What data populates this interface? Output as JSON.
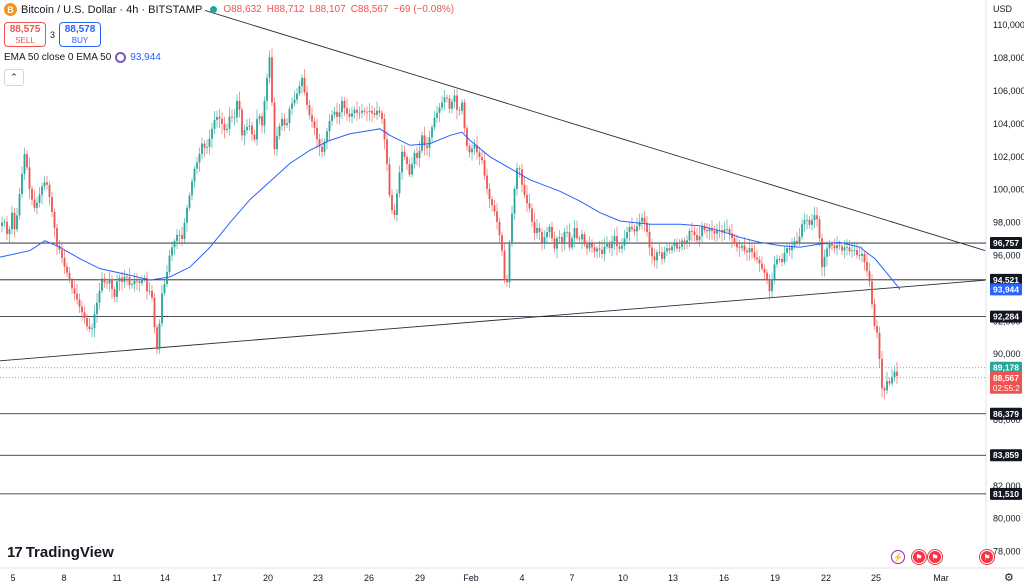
{
  "header": {
    "symbol_icon": "B",
    "title": "Bitcoin / U.S. Dollar · 4h · BITSTAMP",
    "open": "O88,632",
    "high": "H88,712",
    "low": "L88,107",
    "close": "C88,567",
    "change": "−69 (−0.08%)"
  },
  "trade": {
    "sell_price": "88,575",
    "sell_label": "SELL",
    "spread": "3",
    "buy_price": "88,578",
    "buy_label": "BUY"
  },
  "indicator": {
    "label": "EMA 50 close 0 EMA 50",
    "value": "93,944"
  },
  "axis": {
    "currency": "USD"
  },
  "brand": {
    "name": "TradingView",
    "mark": "17"
  },
  "colors": {
    "up": "#26a69a",
    "down": "#ef5350",
    "ema": "#2962ff",
    "flash": "#9c27b0",
    "flag": "#f23645"
  },
  "chart_data": {
    "type": "candlestick",
    "symbol": "Bitcoin / U.S. Dollar",
    "interval": "4h",
    "exchange": "BITSTAMP",
    "ylim": [
      76800,
      111000
    ],
    "y_ticks": [
      "78,000",
      "80,000",
      "82,000",
      "84,000",
      "86,000",
      "88,000",
      "90,000",
      "92,000",
      "94,000",
      "96,000",
      "98,000",
      "100,000",
      "102,000",
      "104,000",
      "106,000",
      "108,000",
      "110,000"
    ],
    "x_ticks": [
      "5",
      "8",
      "11",
      "14",
      "17",
      "20",
      "23",
      "26",
      "29",
      "Feb",
      "4",
      "7",
      "10",
      "13",
      "16",
      "19",
      "22",
      "25",
      "Mar"
    ],
    "close_path": [
      {
        "t": 0,
        "p": 97800
      },
      {
        "t": 4,
        "p": 98200
      },
      {
        "t": 8,
        "p": 97000
      },
      {
        "t": 12,
        "p": 98600
      },
      {
        "t": 15,
        "p": 97400
      },
      {
        "t": 20,
        "p": 100000
      },
      {
        "t": 25,
        "p": 102400
      },
      {
        "t": 30,
        "p": 99800
      },
      {
        "t": 35,
        "p": 98800
      },
      {
        "t": 42,
        "p": 100200
      },
      {
        "t": 46,
        "p": 100600
      },
      {
        "t": 50,
        "p": 99400
      },
      {
        "t": 54,
        "p": 97900
      },
      {
        "t": 57,
        "p": 96600
      },
      {
        "t": 60,
        "p": 96300
      },
      {
        "t": 64,
        "p": 95400
      },
      {
        "t": 68,
        "p": 94800
      },
      {
        "t": 72,
        "p": 94000
      },
      {
        "t": 76,
        "p": 93500
      },
      {
        "t": 80,
        "p": 92800
      },
      {
        "t": 84,
        "p": 92300
      },
      {
        "t": 88,
        "p": 91500
      },
      {
        "t": 92,
        "p": 91600
      },
      {
        "t": 95,
        "p": 92600
      },
      {
        "t": 98,
        "p": 93400
      },
      {
        "t": 102,
        "p": 94600
      },
      {
        "t": 106,
        "p": 94200
      },
      {
        "t": 110,
        "p": 94600
      },
      {
        "t": 114,
        "p": 93300
      },
      {
        "t": 118,
        "p": 94800
      },
      {
        "t": 122,
        "p": 94400
      },
      {
        "t": 126,
        "p": 94900
      },
      {
        "t": 130,
        "p": 94100
      },
      {
        "t": 135,
        "p": 94500
      },
      {
        "t": 140,
        "p": 94300
      },
      {
        "t": 144,
        "p": 94800
      },
      {
        "t": 148,
        "p": 93500
      },
      {
        "t": 151,
        "p": 94200
      },
      {
        "t": 154,
        "p": 91900
      },
      {
        "t": 157,
        "p": 90300
      },
      {
        "t": 159,
        "p": 91500
      },
      {
        "t": 162,
        "p": 93700
      },
      {
        "t": 166,
        "p": 94600
      },
      {
        "t": 170,
        "p": 96200
      },
      {
        "t": 174,
        "p": 96800
      },
      {
        "t": 178,
        "p": 97400
      },
      {
        "t": 182,
        "p": 97000
      },
      {
        "t": 186,
        "p": 98600
      },
      {
        "t": 190,
        "p": 99800
      },
      {
        "t": 194,
        "p": 101200
      },
      {
        "t": 198,
        "p": 101800
      },
      {
        "t": 202,
        "p": 102800
      },
      {
        "t": 206,
        "p": 102400
      },
      {
        "t": 210,
        "p": 103200
      },
      {
        "t": 214,
        "p": 104200
      },
      {
        "t": 218,
        "p": 104500
      },
      {
        "t": 222,
        "p": 104000
      },
      {
        "t": 226,
        "p": 103400
      },
      {
        "t": 230,
        "p": 104600
      },
      {
        "t": 234,
        "p": 104200
      },
      {
        "t": 238,
        "p": 105800
      },
      {
        "t": 242,
        "p": 103300
      },
      {
        "t": 246,
        "p": 103800
      },
      {
        "t": 250,
        "p": 103900
      },
      {
        "t": 254,
        "p": 102800
      },
      {
        "t": 258,
        "p": 104800
      },
      {
        "t": 262,
        "p": 103900
      },
      {
        "t": 266,
        "p": 106300
      },
      {
        "t": 270,
        "p": 108300
      },
      {
        "t": 274,
        "p": 102300
      },
      {
        "t": 278,
        "p": 103600
      },
      {
        "t": 282,
        "p": 104300
      },
      {
        "t": 286,
        "p": 103700
      },
      {
        "t": 290,
        "p": 105100
      },
      {
        "t": 294,
        "p": 105400
      },
      {
        "t": 298,
        "p": 106000
      },
      {
        "t": 302,
        "p": 106800
      },
      {
        "t": 306,
        "p": 105400
      },
      {
        "t": 310,
        "p": 104400
      },
      {
        "t": 314,
        "p": 103900
      },
      {
        "t": 318,
        "p": 102800
      },
      {
        "t": 322,
        "p": 102300
      },
      {
        "t": 326,
        "p": 103300
      },
      {
        "t": 330,
        "p": 104300
      },
      {
        "t": 334,
        "p": 104800
      },
      {
        "t": 338,
        "p": 104300
      },
      {
        "t": 342,
        "p": 105400
      },
      {
        "t": 346,
        "p": 104700
      },
      {
        "t": 350,
        "p": 104400
      },
      {
        "t": 354,
        "p": 104900
      },
      {
        "t": 358,
        "p": 104600
      },
      {
        "t": 362,
        "p": 104800
      },
      {
        "t": 366,
        "p": 104700
      },
      {
        "t": 370,
        "p": 104800
      },
      {
        "t": 374,
        "p": 104500
      },
      {
        "t": 378,
        "p": 104900
      },
      {
        "t": 382,
        "p": 104300
      },
      {
        "t": 386,
        "p": 102300
      },
      {
        "t": 390,
        "p": 99300
      },
      {
        "t": 394,
        "p": 98200
      },
      {
        "t": 398,
        "p": 100300
      },
      {
        "t": 402,
        "p": 102300
      },
      {
        "t": 406,
        "p": 101800
      },
      {
        "t": 410,
        "p": 100800
      },
      {
        "t": 414,
        "p": 102300
      },
      {
        "t": 418,
        "p": 101800
      },
      {
        "t": 422,
        "p": 103300
      },
      {
        "t": 426,
        "p": 102300
      },
      {
        "t": 430,
        "p": 103300
      },
      {
        "t": 434,
        "p": 104300
      },
      {
        "t": 438,
        "p": 104800
      },
      {
        "t": 442,
        "p": 105300
      },
      {
        "t": 446,
        "p": 105800
      },
      {
        "t": 450,
        "p": 104800
      },
      {
        "t": 454,
        "p": 105900
      },
      {
        "t": 458,
        "p": 104500
      },
      {
        "t": 462,
        "p": 105300
      },
      {
        "t": 466,
        "p": 102800
      },
      {
        "t": 470,
        "p": 102200
      },
      {
        "t": 474,
        "p": 102800
      },
      {
        "t": 478,
        "p": 102100
      },
      {
        "t": 482,
        "p": 101800
      },
      {
        "t": 486,
        "p": 100300
      },
      {
        "t": 490,
        "p": 99300
      },
      {
        "t": 494,
        "p": 98800
      },
      {
        "t": 498,
        "p": 97800
      },
      {
        "t": 502,
        "p": 96300
      },
      {
        "t": 506,
        "p": 93400
      },
      {
        "t": 510,
        "p": 97300
      },
      {
        "t": 514,
        "p": 99800
      },
      {
        "t": 518,
        "p": 101800
      },
      {
        "t": 522,
        "p": 100300
      },
      {
        "t": 526,
        "p": 99300
      },
      {
        "t": 530,
        "p": 98800
      },
      {
        "t": 534,
        "p": 97300
      },
      {
        "t": 538,
        "p": 97800
      },
      {
        "t": 542,
        "p": 96800
      },
      {
        "t": 546,
        "p": 97300
      },
      {
        "t": 550,
        "p": 97800
      },
      {
        "t": 554,
        "p": 96300
      },
      {
        "t": 558,
        "p": 97300
      },
      {
        "t": 562,
        "p": 96800
      },
      {
        "t": 566,
        "p": 97800
      },
      {
        "t": 570,
        "p": 96300
      },
      {
        "t": 574,
        "p": 97800
      },
      {
        "t": 578,
        "p": 96800
      },
      {
        "t": 582,
        "p": 97300
      },
      {
        "t": 586,
        "p": 96300
      },
      {
        "t": 590,
        "p": 96800
      },
      {
        "t": 594,
        "p": 96200
      },
      {
        "t": 598,
        "p": 96500
      },
      {
        "t": 602,
        "p": 96100
      },
      {
        "t": 606,
        "p": 96800
      },
      {
        "t": 610,
        "p": 96400
      },
      {
        "t": 614,
        "p": 97300
      },
      {
        "t": 618,
        "p": 96300
      },
      {
        "t": 622,
        "p": 96600
      },
      {
        "t": 626,
        "p": 97300
      },
      {
        "t": 630,
        "p": 97800
      },
      {
        "t": 634,
        "p": 97400
      },
      {
        "t": 638,
        "p": 97900
      },
      {
        "t": 642,
        "p": 98300
      },
      {
        "t": 646,
        "p": 97800
      },
      {
        "t": 650,
        "p": 96300
      },
      {
        "t": 654,
        "p": 95600
      },
      {
        "t": 658,
        "p": 96400
      },
      {
        "t": 662,
        "p": 95800
      },
      {
        "t": 666,
        "p": 96500
      },
      {
        "t": 670,
        "p": 96300
      },
      {
        "t": 674,
        "p": 96800
      },
      {
        "t": 678,
        "p": 96300
      },
      {
        "t": 682,
        "p": 96900
      },
      {
        "t": 686,
        "p": 96700
      },
      {
        "t": 690,
        "p": 97600
      },
      {
        "t": 694,
        "p": 97300
      },
      {
        "t": 698,
        "p": 96800
      },
      {
        "t": 702,
        "p": 97800
      },
      {
        "t": 706,
        "p": 97400
      },
      {
        "t": 710,
        "p": 97700
      },
      {
        "t": 714,
        "p": 97300
      },
      {
        "t": 718,
        "p": 97600
      },
      {
        "t": 722,
        "p": 97400
      },
      {
        "t": 726,
        "p": 97700
      },
      {
        "t": 730,
        "p": 97300
      },
      {
        "t": 734,
        "p": 96800
      },
      {
        "t": 738,
        "p": 96400
      },
      {
        "t": 742,
        "p": 96600
      },
      {
        "t": 746,
        "p": 96100
      },
      {
        "t": 750,
        "p": 96500
      },
      {
        "t": 754,
        "p": 95900
      },
      {
        "t": 758,
        "p": 95700
      },
      {
        "t": 762,
        "p": 95200
      },
      {
        "t": 766,
        "p": 94800
      },
      {
        "t": 770,
        "p": 93700
      },
      {
        "t": 774,
        "p": 95400
      },
      {
        "t": 778,
        "p": 95900
      },
      {
        "t": 782,
        "p": 95600
      },
      {
        "t": 786,
        "p": 96500
      },
      {
        "t": 790,
        "p": 96300
      },
      {
        "t": 794,
        "p": 96900
      },
      {
        "t": 798,
        "p": 96700
      },
      {
        "t": 802,
        "p": 97900
      },
      {
        "t": 806,
        "p": 98300
      },
      {
        "t": 810,
        "p": 97800
      },
      {
        "t": 814,
        "p": 98500
      },
      {
        "t": 818,
        "p": 98100
      },
      {
        "t": 822,
        "p": 95300
      },
      {
        "t": 826,
        "p": 96300
      },
      {
        "t": 830,
        "p": 96800
      },
      {
        "t": 834,
        "p": 96400
      },
      {
        "t": 838,
        "p": 96700
      },
      {
        "t": 842,
        "p": 96300
      },
      {
        "t": 846,
        "p": 96600
      },
      {
        "t": 850,
        "p": 96200
      },
      {
        "t": 854,
        "p": 96400
      },
      {
        "t": 858,
        "p": 95900
      },
      {
        "t": 862,
        "p": 96100
      },
      {
        "t": 866,
        "p": 95300
      },
      {
        "t": 870,
        "p": 94300
      },
      {
        "t": 874,
        "p": 91800
      },
      {
        "t": 877,
        "p": 91300
      },
      {
        "t": 880,
        "p": 89400
      },
      {
        "t": 883,
        "p": 87200
      },
      {
        "t": 886,
        "p": 88400
      },
      {
        "t": 890,
        "p": 88200
      },
      {
        "t": 894,
        "p": 89000
      },
      {
        "t": 898,
        "p": 88567
      }
    ],
    "ema50_path": [
      {
        "t": 0,
        "p": 95900
      },
      {
        "t": 30,
        "p": 96300
      },
      {
        "t": 45,
        "p": 96900
      },
      {
        "t": 60,
        "p": 96500
      },
      {
        "t": 80,
        "p": 95800
      },
      {
        "t": 100,
        "p": 95200
      },
      {
        "t": 130,
        "p": 94800
      },
      {
        "t": 150,
        "p": 94500
      },
      {
        "t": 170,
        "p": 94700
      },
      {
        "t": 190,
        "p": 95300
      },
      {
        "t": 210,
        "p": 96500
      },
      {
        "t": 230,
        "p": 98000
      },
      {
        "t": 250,
        "p": 99400
      },
      {
        "t": 270,
        "p": 100500
      },
      {
        "t": 290,
        "p": 101600
      },
      {
        "t": 310,
        "p": 102400
      },
      {
        "t": 330,
        "p": 103000
      },
      {
        "t": 350,
        "p": 103400
      },
      {
        "t": 370,
        "p": 103600
      },
      {
        "t": 380,
        "p": 103700
      },
      {
        "t": 390,
        "p": 103300
      },
      {
        "t": 410,
        "p": 102700
      },
      {
        "t": 430,
        "p": 102800
      },
      {
        "t": 450,
        "p": 103300
      },
      {
        "t": 462,
        "p": 103500
      },
      {
        "t": 470,
        "p": 103000
      },
      {
        "t": 490,
        "p": 102000
      },
      {
        "t": 510,
        "p": 101300
      },
      {
        "t": 530,
        "p": 100600
      },
      {
        "t": 560,
        "p": 99900
      },
      {
        "t": 580,
        "p": 99300
      },
      {
        "t": 600,
        "p": 98600
      },
      {
        "t": 620,
        "p": 98100
      },
      {
        "t": 650,
        "p": 97900
      },
      {
        "t": 680,
        "p": 97900
      },
      {
        "t": 700,
        "p": 97800
      },
      {
        "t": 720,
        "p": 97500
      },
      {
        "t": 740,
        "p": 97100
      },
      {
        "t": 760,
        "p": 96800
      },
      {
        "t": 780,
        "p": 96600
      },
      {
        "t": 800,
        "p": 96500
      },
      {
        "t": 820,
        "p": 96700
      },
      {
        "t": 840,
        "p": 96800
      },
      {
        "t": 860,
        "p": 96500
      },
      {
        "t": 875,
        "p": 95800
      },
      {
        "t": 890,
        "p": 94700
      },
      {
        "t": 900,
        "p": 93944
      }
    ],
    "trendlines": [
      {
        "name": "descending resistance",
        "from": {
          "t": 205,
          "p": 110900
        },
        "to": {
          "t": 985,
          "p": 96300
        }
      },
      {
        "name": "ascending support",
        "from": {
          "t": 0,
          "p": 89600
        },
        "to": {
          "t": 985,
          "p": 94500
        }
      }
    ],
    "levels": [
      {
        "value": 96757,
        "label": "96,757",
        "style": "black"
      },
      {
        "value": 94521,
        "label": "94,521",
        "style": "black"
      },
      {
        "value": 93944,
        "label": "93,944",
        "style": "ema"
      },
      {
        "value": 92284,
        "label": "92,284",
        "style": "black"
      },
      {
        "value": 89178,
        "label": "89,178",
        "style": "green"
      },
      {
        "value": 88567,
        "label": "88,567",
        "sublabel": "02:55:2",
        "style": "red"
      },
      {
        "value": 86379,
        "label": "86,379",
        "style": "black"
      },
      {
        "value": 83859,
        "label": "83,859",
        "style": "black"
      },
      {
        "value": 81510,
        "label": "81,510",
        "style": "black"
      }
    ],
    "grid": false,
    "legend": "none"
  }
}
